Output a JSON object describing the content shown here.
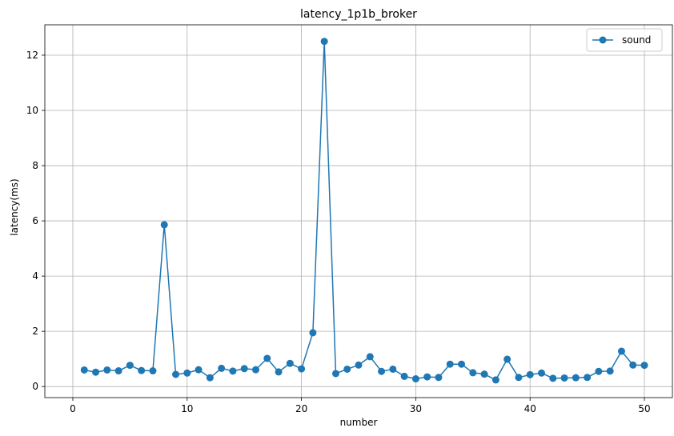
{
  "chart_data": {
    "type": "line",
    "title": "latency_1p1b_broker",
    "xlabel": "number",
    "ylabel": "latency(ms)",
    "xlim": [
      -2.45,
      52.45
    ],
    "ylim": [
      -0.4,
      13.1
    ],
    "xticks": [
      0,
      10,
      20,
      30,
      40,
      50
    ],
    "yticks": [
      0,
      2,
      4,
      6,
      8,
      10,
      12
    ],
    "grid": true,
    "legend_position": "top-right",
    "series": [
      {
        "name": "sound",
        "color": "#1f77b4",
        "marker": "circle",
        "x": [
          1,
          2,
          3,
          4,
          5,
          6,
          7,
          8,
          9,
          10,
          11,
          12,
          13,
          14,
          15,
          16,
          17,
          18,
          19,
          20,
          21,
          22,
          23,
          24,
          25,
          26,
          27,
          28,
          29,
          30,
          31,
          32,
          33,
          34,
          35,
          36,
          37,
          38,
          39,
          40,
          41,
          42,
          43,
          44,
          45,
          46,
          47,
          48,
          49,
          50
        ],
        "values": [
          0.6,
          0.52,
          0.6,
          0.57,
          0.77,
          0.58,
          0.57,
          5.86,
          0.44,
          0.49,
          0.61,
          0.32,
          0.66,
          0.56,
          0.65,
          0.61,
          1.02,
          0.53,
          0.84,
          0.64,
          1.95,
          12.5,
          0.47,
          0.63,
          0.78,
          1.08,
          0.55,
          0.63,
          0.37,
          0.28,
          0.35,
          0.33,
          0.81,
          0.81,
          0.5,
          0.45,
          0.24,
          0.99,
          0.33,
          0.43,
          0.49,
          0.3,
          0.31,
          0.32,
          0.33,
          0.55,
          0.56,
          1.28,
          0.78,
          0.77
        ]
      }
    ]
  }
}
